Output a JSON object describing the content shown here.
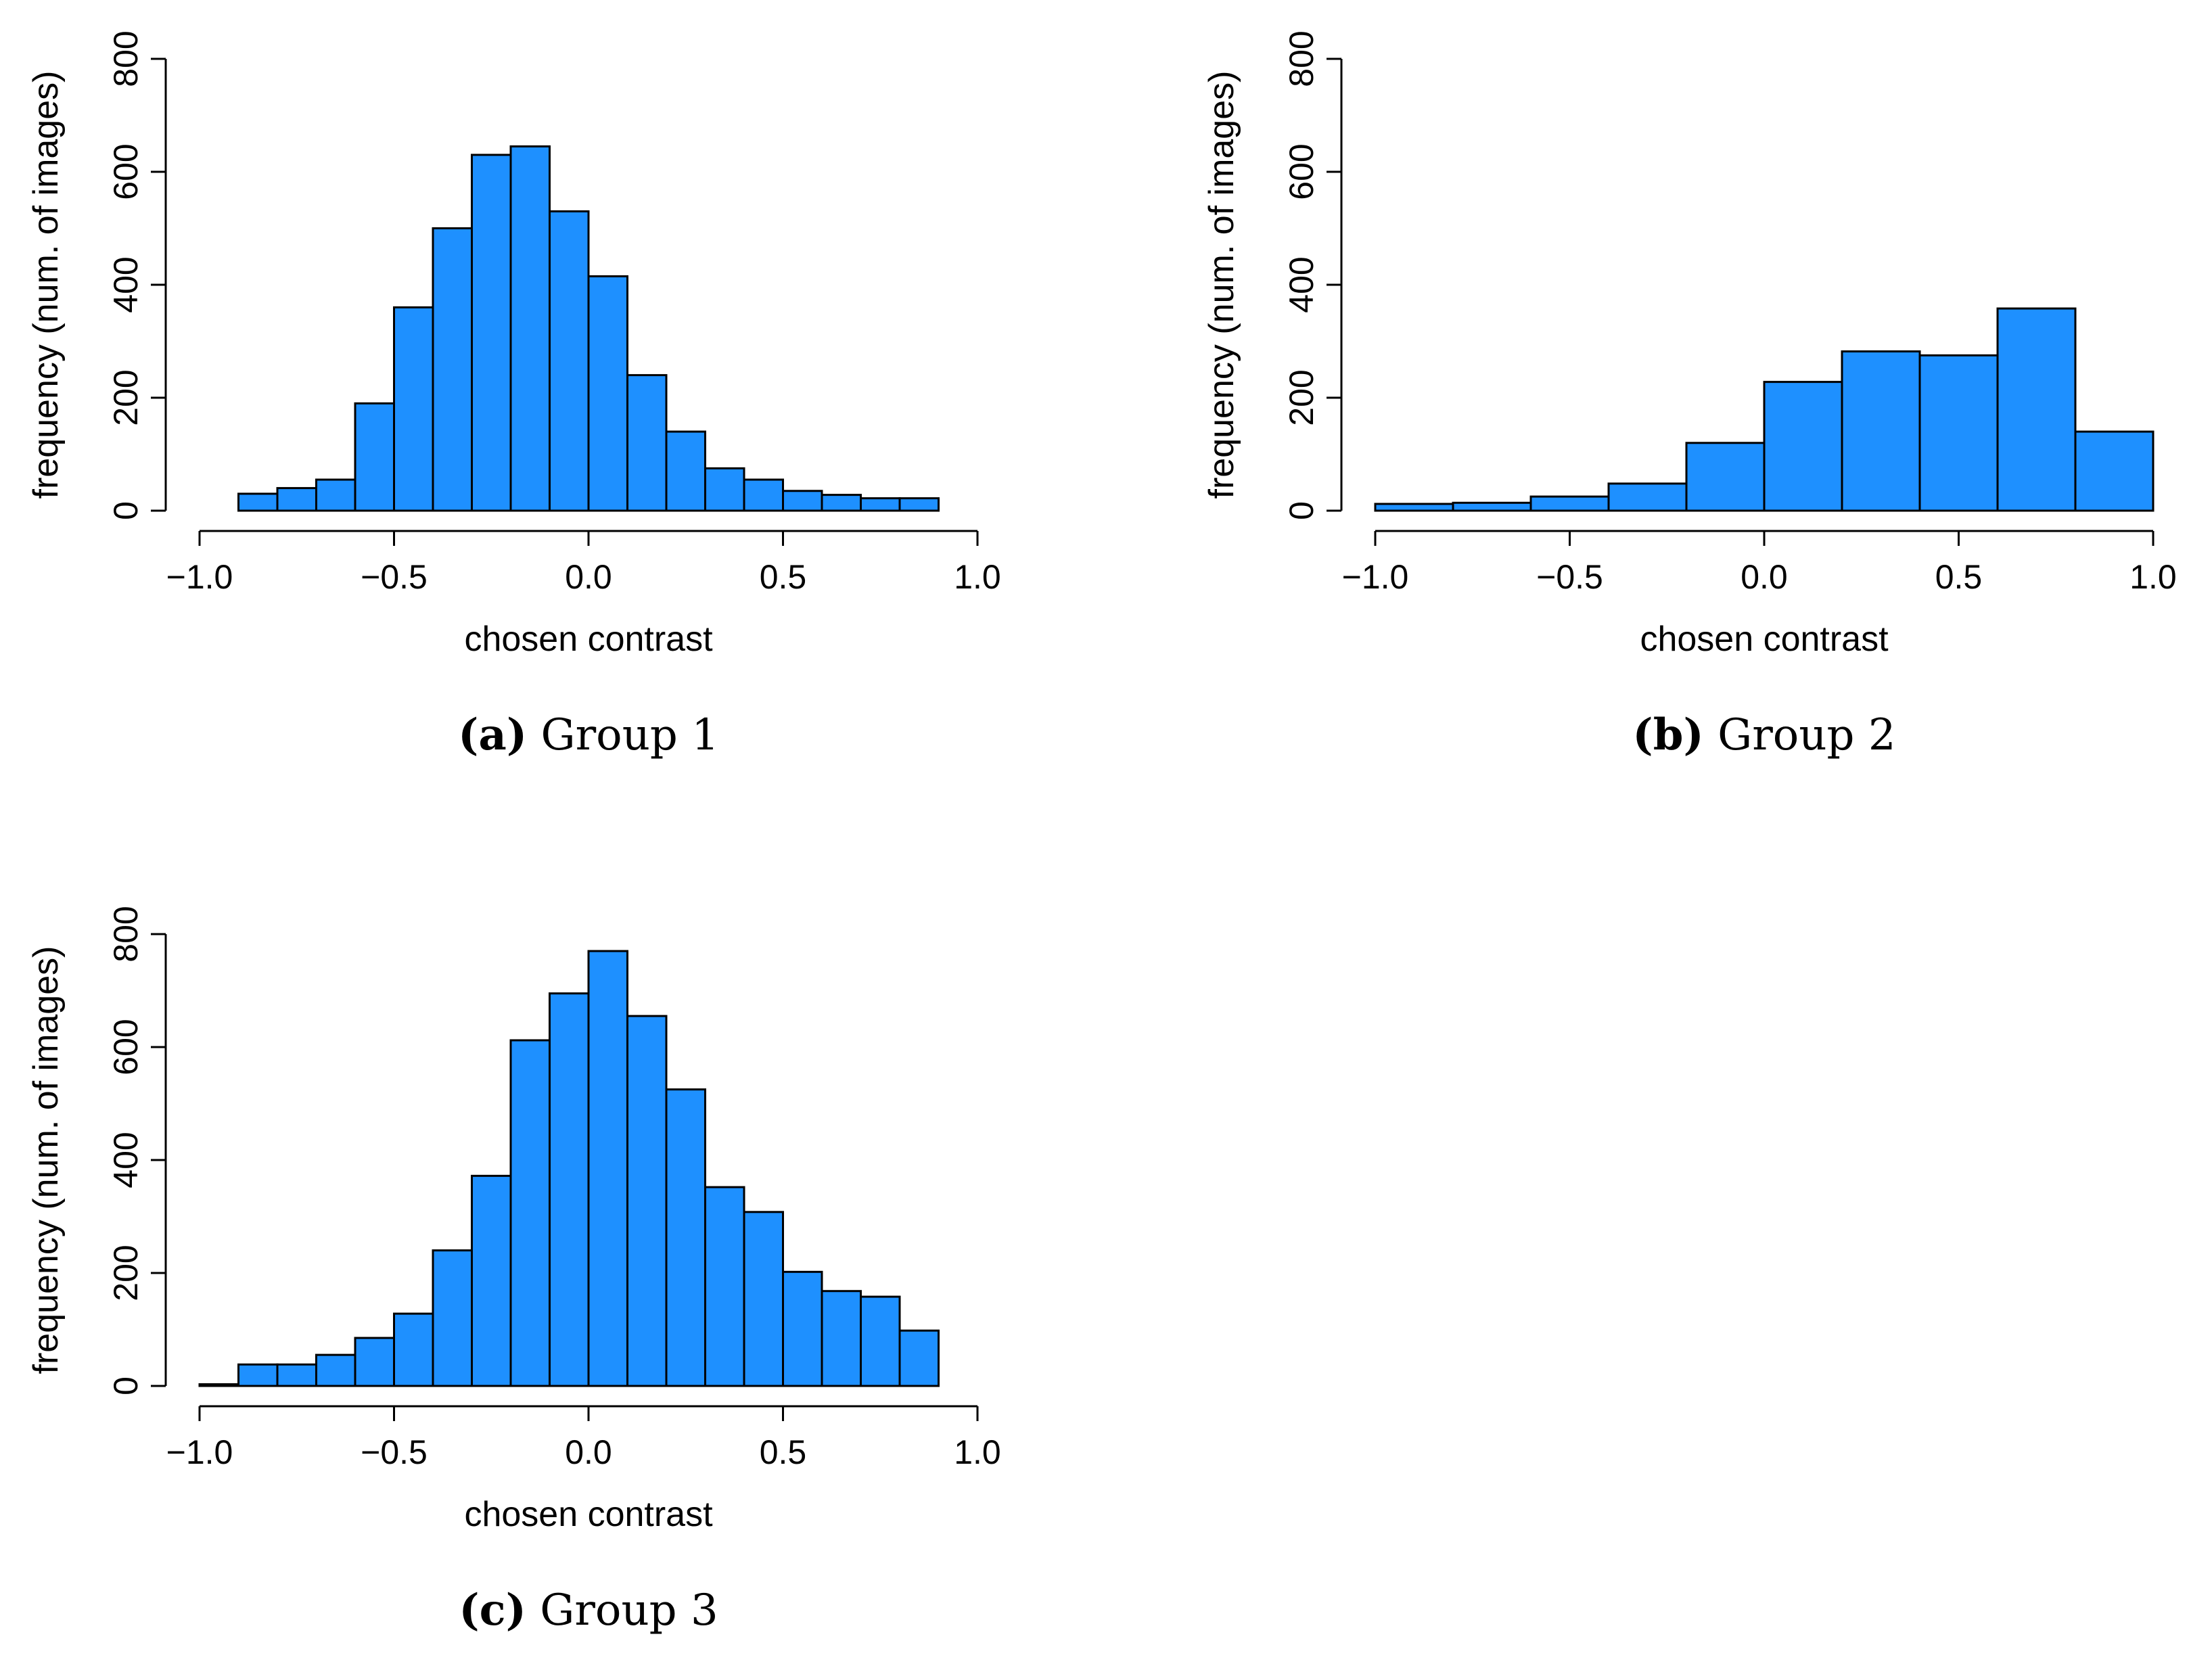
{
  "chart_data": [
    {
      "type": "bar",
      "caption_letter": "(a)",
      "caption_text": "Group 1",
      "xlabel": "chosen contrast",
      "ylabel": "frequency (num. of images)",
      "xlim": [
        -1.0,
        1.0
      ],
      "ylim": [
        0,
        800
      ],
      "x_ticks": [
        "−1.0",
        "−0.5",
        "0.0",
        "0.5",
        "1.0"
      ],
      "y_ticks": [
        "0",
        "200",
        "400",
        "600",
        "800"
      ],
      "bin_edges": [
        -0.9,
        -0.8,
        -0.7,
        -0.6,
        -0.5,
        -0.4,
        -0.3,
        -0.2,
        -0.1,
        0.0,
        0.1,
        0.2,
        0.3,
        0.4,
        0.5,
        0.6,
        0.7,
        0.8,
        0.9
      ],
      "values": [
        30,
        40,
        55,
        190,
        360,
        500,
        630,
        645,
        530,
        415,
        240,
        140,
        75,
        55,
        35,
        28,
        22,
        22
      ]
    },
    {
      "type": "bar",
      "caption_letter": "(b)",
      "caption_text": "Group 2",
      "xlabel": "chosen contrast",
      "ylabel": "frequency (num. of images)",
      "xlim": [
        -1.0,
        1.0
      ],
      "ylim": [
        0,
        800
      ],
      "x_ticks": [
        "−1.0",
        "−0.5",
        "0.0",
        "0.5",
        "1.0"
      ],
      "y_ticks": [
        "0",
        "200",
        "400",
        "600",
        "800"
      ],
      "bin_edges": [
        -1.0,
        -0.8,
        -0.6,
        -0.4,
        -0.2,
        0.0,
        0.2,
        0.4,
        0.6,
        0.8,
        1.0
      ],
      "values": [
        12,
        14,
        25,
        48,
        120,
        228,
        282,
        275,
        358,
        140
      ]
    },
    {
      "type": "bar",
      "caption_letter": "(c)",
      "caption_text": "Group 3",
      "xlabel": "chosen contrast",
      "ylabel": "frequency (num. of images)",
      "xlim": [
        -1.0,
        1.0
      ],
      "ylim": [
        0,
        800
      ],
      "x_ticks": [
        "−1.0",
        "−0.5",
        "0.0",
        "0.5",
        "1.0"
      ],
      "y_ticks": [
        "0",
        "200",
        "400",
        "600",
        "800"
      ],
      "bin_edges": [
        -1.0,
        -0.9,
        -0.8,
        -0.7,
        -0.6,
        -0.5,
        -0.4,
        -0.3,
        -0.2,
        -0.1,
        0.0,
        0.1,
        0.2,
        0.3,
        0.4,
        0.5,
        0.6,
        0.7,
        0.8,
        0.9
      ],
      "values": [
        3,
        38,
        38,
        55,
        85,
        128,
        240,
        372,
        612,
        695,
        770,
        655,
        525,
        352,
        308,
        202,
        168,
        158,
        98
      ]
    }
  ],
  "colors": {
    "bar_fill": "#1E90FF",
    "bar_stroke": "#000000",
    "axis": "#000000"
  }
}
